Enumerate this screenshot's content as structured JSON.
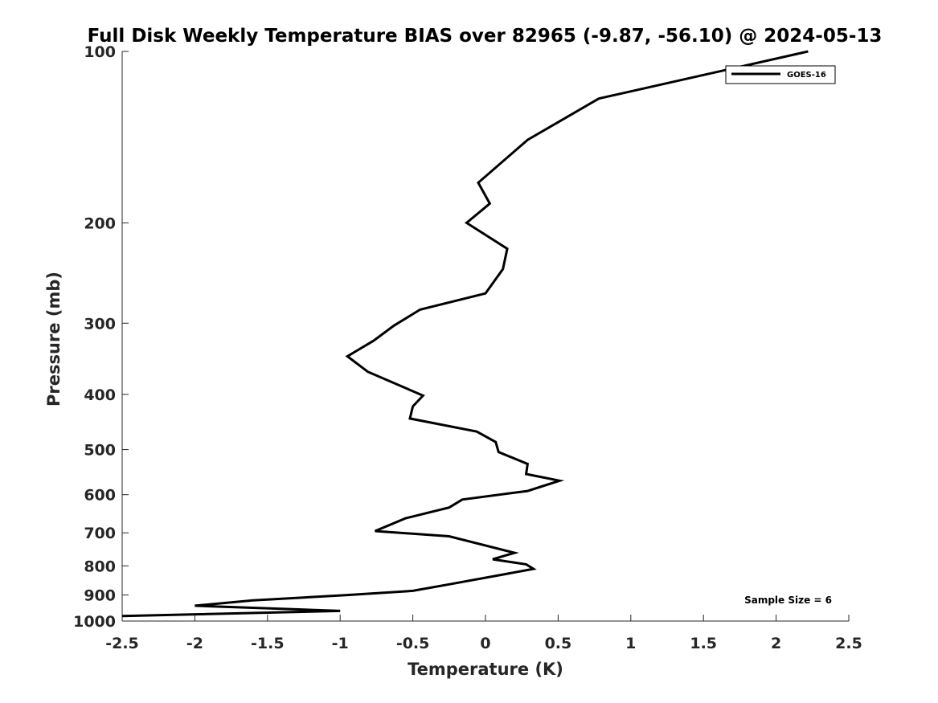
{
  "chart_data": {
    "type": "line",
    "title": "Full Disk Weekly Temperature BIAS over 82965 (-9.87, -56.10) @ 2024-05-13",
    "xlabel": "Temperature (K)",
    "ylabel": "Pressure (mb)",
    "xlim": [
      -2.5,
      2.5
    ],
    "ylim": [
      100,
      1000
    ],
    "y_scale": "log",
    "y_reversed": true,
    "x_ticks": [
      -2.5,
      -2,
      -1.5,
      -1,
      -0.5,
      0,
      0.5,
      1,
      1.5,
      2,
      2.5
    ],
    "x_tick_labels": [
      "-2.5",
      "-2",
      "-1.5",
      "-1",
      "-0.5",
      "0",
      "0.5",
      "1",
      "1.5",
      "2",
      "2.5"
    ],
    "y_ticks": [
      100,
      200,
      300,
      400,
      500,
      600,
      700,
      800,
      900,
      1000
    ],
    "y_tick_labels": [
      "100",
      "200",
      "300",
      "400",
      "500",
      "600",
      "700",
      "800",
      "900",
      "1000"
    ],
    "grid": false,
    "legend_position": "top-right",
    "annotation": "Sample Size = 6",
    "series": [
      {
        "name": "GOES-16",
        "color": "#000000",
        "points": [
          {
            "x": 2.22,
            "p": 100
          },
          {
            "x": 0.78,
            "p": 121
          },
          {
            "x": 0.29,
            "p": 143
          },
          {
            "x": -0.05,
            "p": 170
          },
          {
            "x": 0.03,
            "p": 185
          },
          {
            "x": -0.13,
            "p": 200
          },
          {
            "x": 0.15,
            "p": 222
          },
          {
            "x": 0.12,
            "p": 241
          },
          {
            "x": 0.0,
            "p": 266
          },
          {
            "x": -0.45,
            "p": 284
          },
          {
            "x": -0.63,
            "p": 303
          },
          {
            "x": -0.77,
            "p": 322
          },
          {
            "x": -0.95,
            "p": 343
          },
          {
            "x": -0.81,
            "p": 365
          },
          {
            "x": -0.43,
            "p": 402
          },
          {
            "x": -0.5,
            "p": 420
          },
          {
            "x": -0.52,
            "p": 441
          },
          {
            "x": -0.06,
            "p": 465
          },
          {
            "x": 0.07,
            "p": 485
          },
          {
            "x": 0.09,
            "p": 505
          },
          {
            "x": 0.29,
            "p": 530
          },
          {
            "x": 0.28,
            "p": 552
          },
          {
            "x": 0.51,
            "p": 567
          },
          {
            "x": 0.29,
            "p": 591
          },
          {
            "x": -0.16,
            "p": 612
          },
          {
            "x": -0.25,
            "p": 632
          },
          {
            "x": -0.55,
            "p": 660
          },
          {
            "x": -0.76,
            "p": 695
          },
          {
            "x": -0.25,
            "p": 710
          },
          {
            "x": 0.2,
            "p": 759
          },
          {
            "x": 0.05,
            "p": 779
          },
          {
            "x": 0.28,
            "p": 795
          },
          {
            "x": 0.33,
            "p": 810
          },
          {
            "x": 0.15,
            "p": 826
          },
          {
            "x": -0.25,
            "p": 862
          },
          {
            "x": -0.5,
            "p": 885
          },
          {
            "x": -0.95,
            "p": 900
          },
          {
            "x": -1.6,
            "p": 920
          },
          {
            "x": -2.0,
            "p": 940
          },
          {
            "x": -1.0,
            "p": 960
          },
          {
            "x": -2.5,
            "p": 980
          }
        ]
      }
    ]
  }
}
